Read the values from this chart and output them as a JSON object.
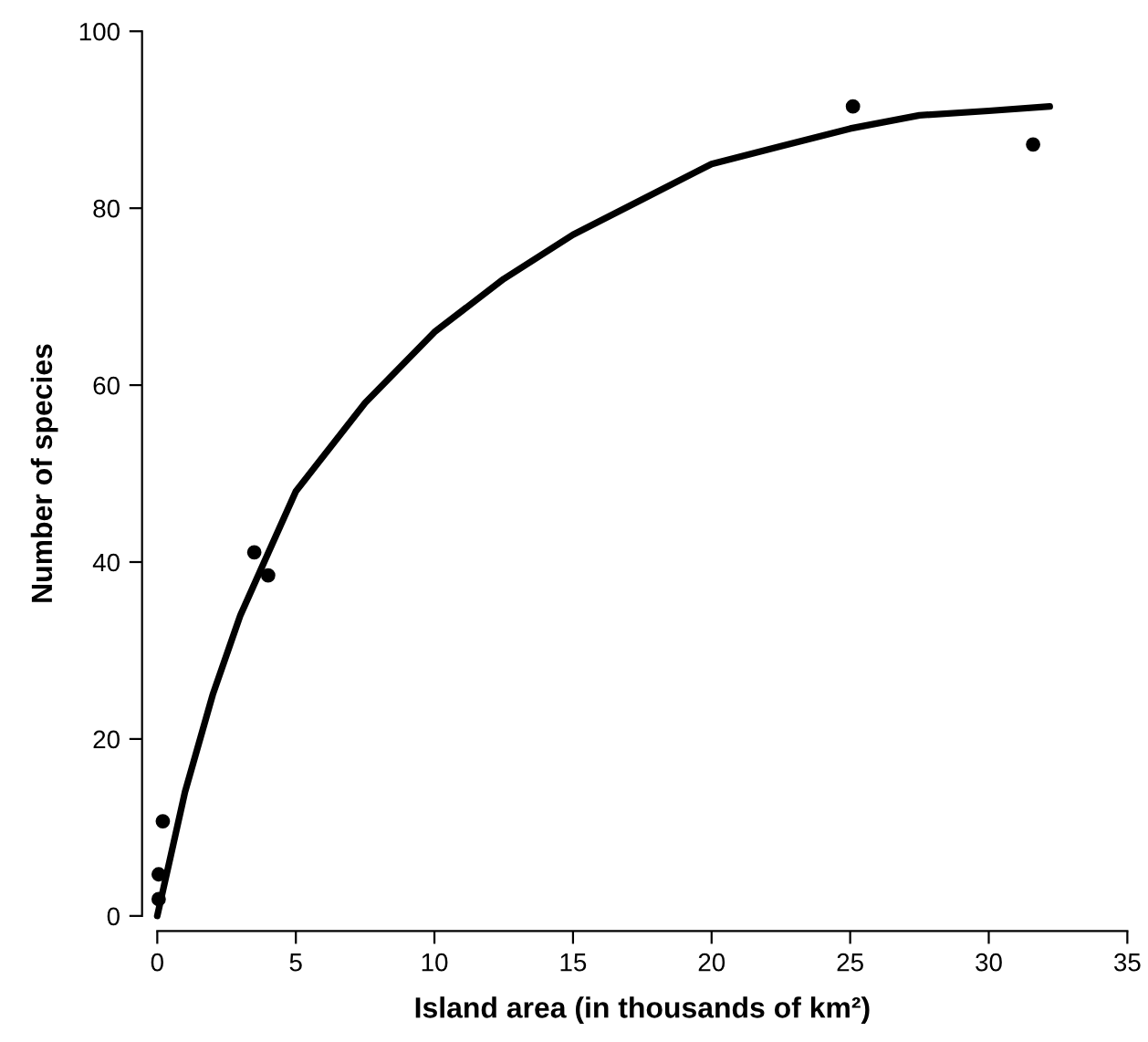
{
  "chart_data": {
    "type": "scatter",
    "xlabel": "Island area (in thousands of km²)",
    "ylabel": "Number of species",
    "xlim": [
      0,
      35
    ],
    "xticks": [
      0,
      5,
      10,
      15,
      20,
      25,
      30,
      35
    ],
    "ylim": [
      0,
      100
    ],
    "yticks": [
      0,
      20,
      40,
      60,
      80,
      100
    ],
    "grid": false,
    "legend": false,
    "marker": "circle",
    "series": [
      {
        "color": "#000000",
        "x": [
          0.05,
          0.05,
          0.2,
          3.5,
          4.0,
          25.1,
          31.6
        ],
        "values": [
          1.9,
          4.7,
          10.7,
          41.1,
          38.5,
          91.5,
          87.2
        ]
      },
      {
        "type": "line",
        "color": "#000000",
        "marker": "none",
        "line_style": "solid",
        "x": [
          0,
          0.5,
          1,
          2,
          3,
          4,
          5,
          7.5,
          10,
          12.5,
          15,
          17.5,
          20,
          22.5,
          25,
          27.5,
          30,
          32.2
        ],
        "values": [
          0,
          7,
          14,
          25,
          34,
          41,
          48,
          58,
          66,
          72,
          77,
          81,
          85,
          87,
          89,
          90.5,
          91,
          91.5
        ]
      }
    ]
  }
}
